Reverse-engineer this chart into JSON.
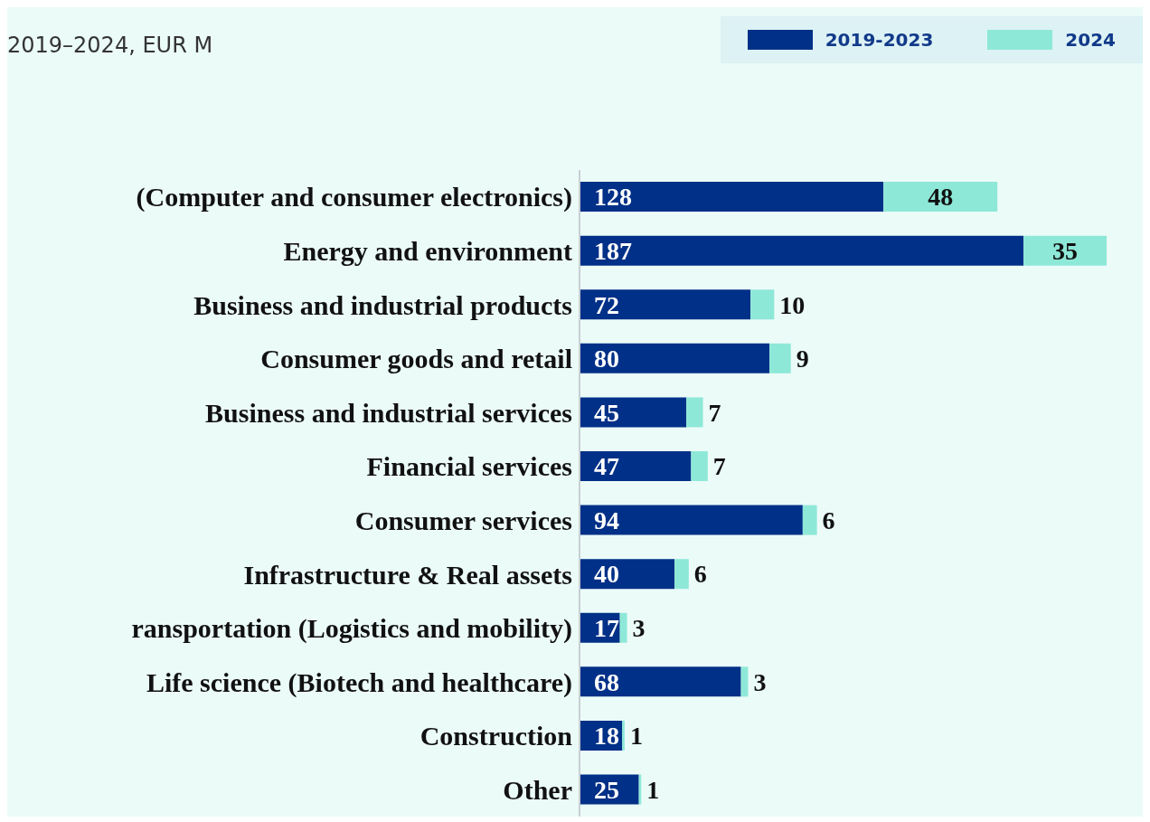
{
  "chart_data": {
    "type": "bar",
    "orientation": "horizontal",
    "stacked": true,
    "title": "2019–2024, EUR M",
    "categories": [
      "(Computer and consumer electronics)",
      "Energy and environment",
      "Business and industrial products",
      "Consumer goods and retail",
      "Business and industrial services",
      "Financial services",
      "Consumer services",
      "Infrastructure & Real assets",
      "ransportation (Logistics and mobility)",
      "Life science (Biotech and healthcare)",
      "Construction",
      "Other"
    ],
    "series": [
      {
        "name": "2019-2023",
        "color": "#003087",
        "values": [
          128,
          187,
          72,
          80,
          45,
          47,
          94,
          40,
          17,
          68,
          18,
          25
        ]
      },
      {
        "name": "2024",
        "color": "#8ee8d8",
        "values": [
          48,
          35,
          10,
          9,
          7,
          7,
          6,
          6,
          3,
          3,
          1,
          1
        ]
      }
    ],
    "data_labels": true,
    "legend": "top right"
  }
}
